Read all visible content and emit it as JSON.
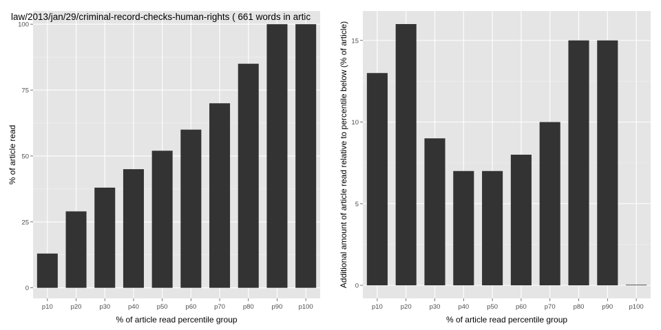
{
  "chart_data": [
    {
      "type": "bar",
      "title": "law/2013/jan/29/criminal-record-checks-human-rights ( 661 words in artic",
      "xlabel": "% of article read percentile group",
      "ylabel": "% of article read",
      "categories": [
        "p10",
        "p20",
        "p30",
        "p40",
        "p50",
        "p60",
        "p70",
        "p80",
        "p90",
        "p100"
      ],
      "values": [
        13,
        29,
        38,
        45,
        52,
        60,
        70,
        85,
        100,
        100
      ],
      "ylim": [
        -4,
        105
      ],
      "yticks": [
        0,
        25,
        50,
        75,
        100
      ],
      "ytick_labels": [
        "0",
        "25",
        "50",
        "75",
        "100"
      ],
      "grid": true,
      "bar_color": "#333333",
      "panel_color": "#e5e5e5",
      "grid_color": "#ffffff"
    },
    {
      "type": "bar",
      "title": "",
      "xlabel": "% of article read percentile group",
      "ylabel": "Additional amount of article read relative to percentile below (% of article)",
      "categories": [
        "p10",
        "p20",
        "p30",
        "p40",
        "p50",
        "p60",
        "p70",
        "p80",
        "p90",
        "p100"
      ],
      "values": [
        13,
        16,
        9,
        7,
        7,
        8,
        10,
        15,
        15,
        0
      ],
      "ylim": [
        -0.8,
        16.8
      ],
      "yticks": [
        0,
        5,
        10,
        15
      ],
      "ytick_labels": [
        "0",
        "5",
        "10",
        "15"
      ],
      "grid": true,
      "bar_color": "#333333",
      "panel_color": "#e5e5e5",
      "grid_color": "#ffffff"
    }
  ]
}
